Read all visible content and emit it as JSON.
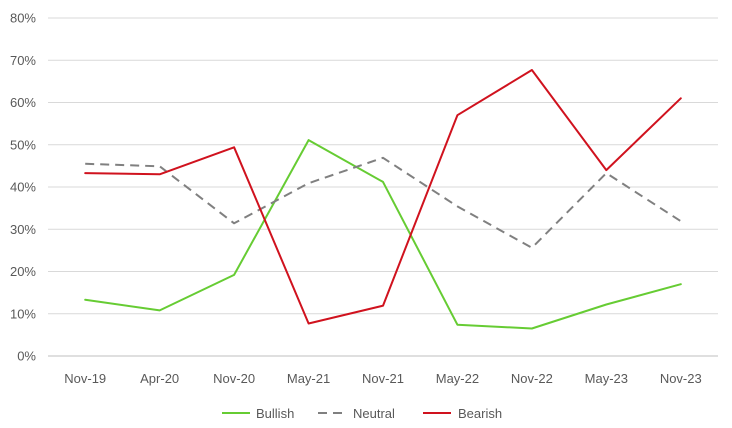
{
  "chart_data": {
    "type": "line",
    "title": "",
    "xlabel": "",
    "ylabel": "",
    "categories": [
      "Nov-19",
      "Apr-20",
      "Nov-20",
      "May-21",
      "Nov-21",
      "May-22",
      "Nov-22",
      "May-23",
      "Nov-23"
    ],
    "ylim": [
      0,
      80
    ],
    "yticks": [
      0,
      10,
      20,
      30,
      40,
      50,
      60,
      70,
      80
    ],
    "ytick_labels": [
      "0%",
      "10%",
      "20%",
      "30%",
      "40%",
      "50%",
      "60%",
      "70%",
      "80%"
    ],
    "grid": true,
    "legend_position": "bottom",
    "series": [
      {
        "name": "Bullish",
        "color": "#66cc33",
        "dash": "solid",
        "values": [
          13.3,
          10.8,
          19.2,
          51.1,
          41.2,
          7.4,
          6.5,
          12.2,
          17.0
        ]
      },
      {
        "name": "Neutral",
        "color": "#808080",
        "dash": "dashed",
        "values": [
          45.5,
          44.9,
          31.4,
          40.9,
          46.9,
          35.4,
          25.6,
          43.3,
          31.9
        ]
      },
      {
        "name": "Bearish",
        "color": "#d0121e",
        "dash": "solid",
        "values": [
          43.3,
          43.0,
          49.4,
          7.7,
          11.9,
          57.0,
          67.7,
          44.0,
          61.0
        ]
      }
    ]
  }
}
